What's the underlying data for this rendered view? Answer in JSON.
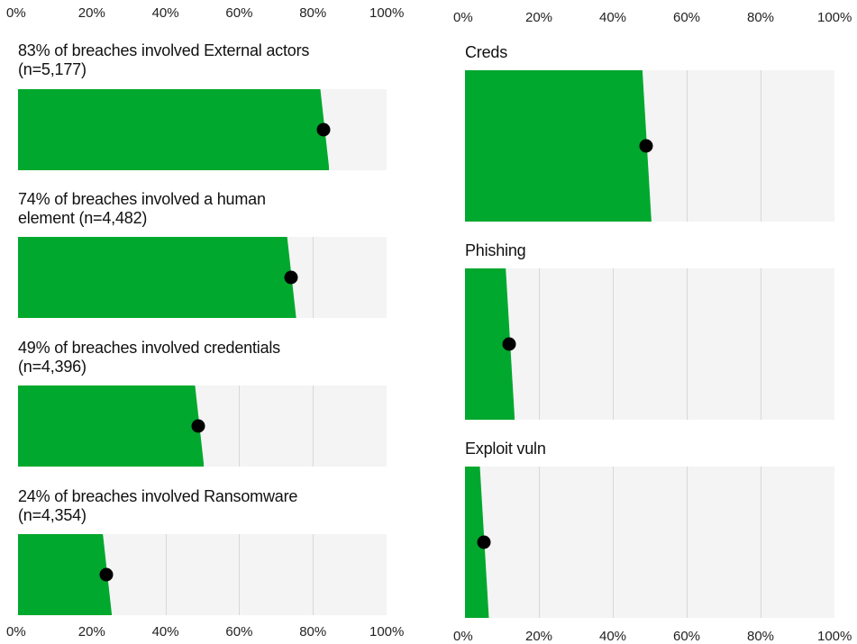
{
  "colors": {
    "fill": "#00a82d",
    "track": "#f4f4f4",
    "grid": "#d8d8d8",
    "dot": "#000000"
  },
  "axis_ticks": [
    "0%",
    "20%",
    "40%",
    "60%",
    "80%",
    "100%"
  ],
  "chart_data": [
    {
      "type": "bar",
      "orientation": "horizontal",
      "xlim": [
        0,
        100
      ],
      "x_unit": "%",
      "grid": true,
      "rows": [
        {
          "title": "83% of breaches involved External actors (n=5,177)",
          "value": 83,
          "point": 83
        },
        {
          "title": "74% of breaches involved a human element (n=4,482)",
          "value": 74,
          "point": 74
        },
        {
          "title": "49% of breaches involved credentials (n=4,396)",
          "value": 49,
          "point": 49
        },
        {
          "title": "24% of breaches involved Ransomware (n=4,354)",
          "value": 24,
          "point": 24
        }
      ]
    },
    {
      "type": "bar",
      "orientation": "horizontal",
      "xlim": [
        0,
        100
      ],
      "x_unit": "%",
      "grid": true,
      "rows": [
        {
          "title": "Creds",
          "value": 49,
          "point": 49
        },
        {
          "title": "Phishing",
          "value": 12,
          "point": 12
        },
        {
          "title": "Exploit vuln",
          "value": 5,
          "point": 5
        }
      ]
    }
  ]
}
